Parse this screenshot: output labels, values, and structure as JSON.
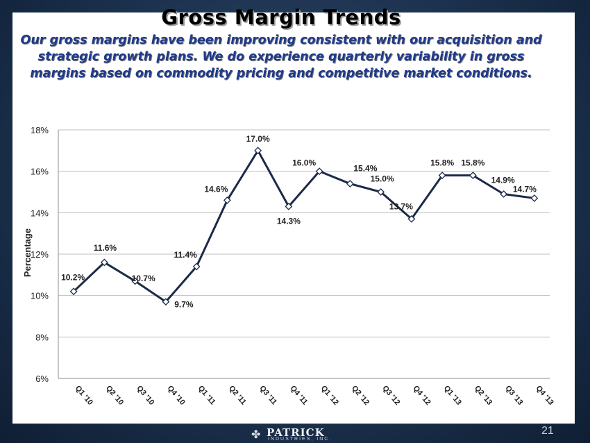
{
  "slide": {
    "title": "Gross Margin Trends",
    "subtitle": "Our gross margins have been improving consistent with our acquisition and strategic growth plans. We do experience quarterly variability in gross margins based on commodity pricing and competitive market conditions.",
    "page_number": "21"
  },
  "logo": {
    "name": "PATRICK",
    "tagline": "INDUSTRIES, INC."
  },
  "chart_data": {
    "type": "line",
    "title": "",
    "xlabel": "",
    "ylabel": "Percentage",
    "ylim": [
      6,
      18
    ],
    "yticks": [
      "6%",
      "8%",
      "10%",
      "12%",
      "14%",
      "16%",
      "18%"
    ],
    "grid": true,
    "categories": [
      "Q1 '10",
      "Q2 '10",
      "Q3 '10",
      "Q4 '10",
      "Q1 '11",
      "Q2 '11",
      "Q3 '11",
      "Q4 '11",
      "Q1 '12",
      "Q2 '12",
      "Q3 '12",
      "Q4 '12",
      "Q1 '13",
      "Q2 '13",
      "Q3 '13",
      "Q4 '13"
    ],
    "series": [
      {
        "values": [
          10.2,
          11.6,
          10.7,
          9.7,
          11.4,
          14.6,
          17.0,
          14.3,
          16.0,
          15.4,
          15.0,
          13.7,
          15.8,
          15.8,
          14.9,
          14.7
        ],
        "labels": [
          "10.2%",
          "11.6%",
          "10.7%",
          "9.7%",
          "11.4%",
          "14.6%",
          "17.0%",
          "14.3%",
          "16.0%",
          "15.4%",
          "15.0%",
          "13.7%",
          "15.8%",
          "15.8%",
          "14.9%",
          "14.7%"
        ],
        "color": "#1c2a48"
      }
    ]
  }
}
